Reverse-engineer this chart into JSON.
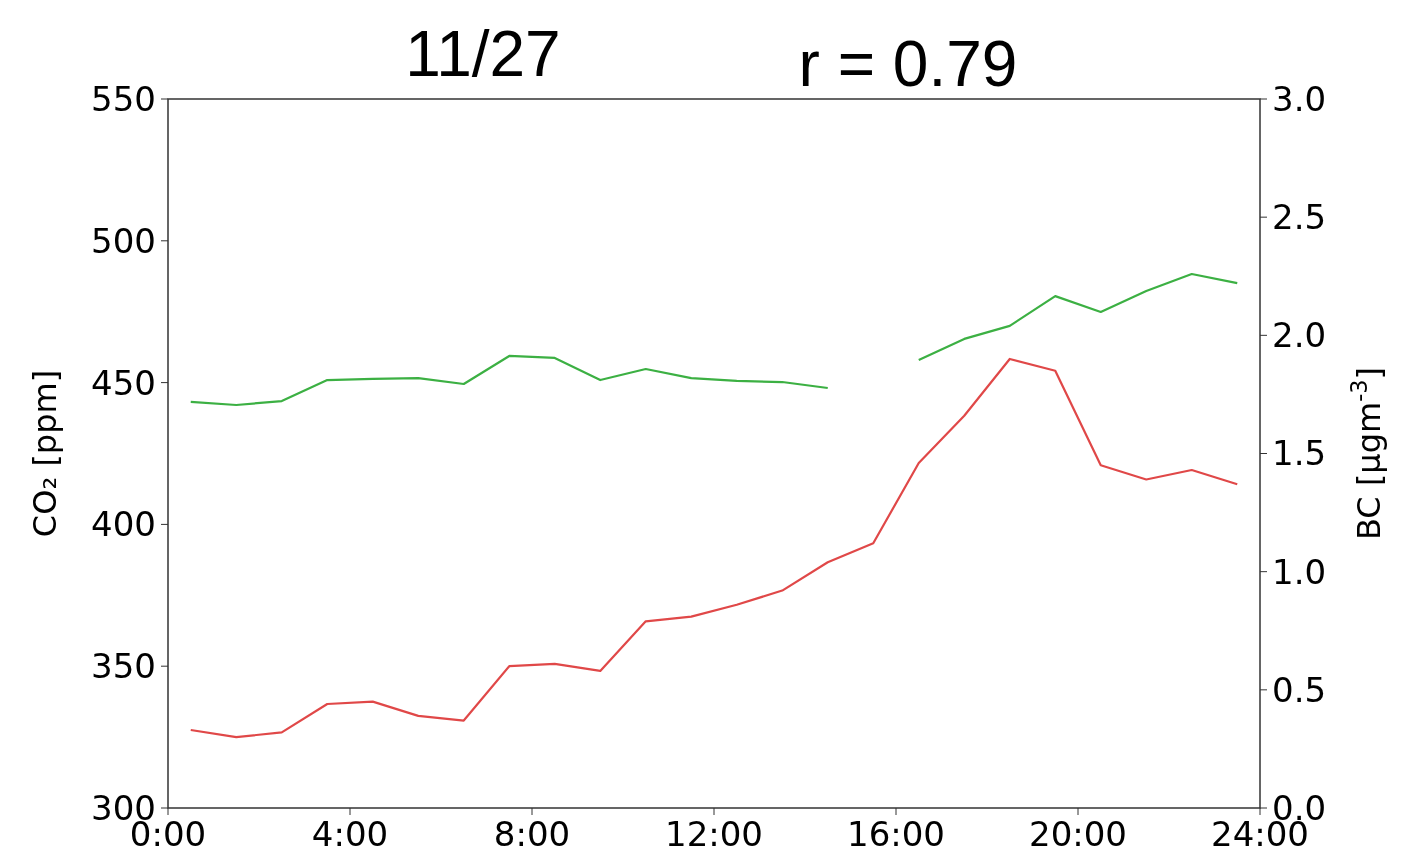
{
  "chart_data": {
    "type": "line",
    "title": "11/27",
    "annotations": [
      "r = 0.79"
    ],
    "xlabel": null,
    "ylabel": "CO₂ [ppm]",
    "y2label": "BC [µgm$^{-3}$]",
    "x": [
      0.5,
      1.5,
      2.5,
      3.5,
      4.5,
      5.5,
      6.5,
      7.5,
      8.5,
      9.5,
      10.5,
      11.5,
      12.5,
      13.5,
      14.5,
      15.5,
      16.5,
      17.5,
      18.5,
      19.5,
      20.5,
      21.5,
      22.5,
      23.5
    ],
    "xlim": [
      0,
      24
    ],
    "xticks": [
      {
        "value": 0,
        "label": "0:00"
      },
      {
        "value": 4,
        "label": "4:00"
      },
      {
        "value": 8,
        "label": "8:00"
      },
      {
        "value": 12,
        "label": "12:00"
      },
      {
        "value": 16,
        "label": "16:00"
      },
      {
        "value": 20,
        "label": "20:00"
      },
      {
        "value": 24,
        "label": "24:00"
      }
    ],
    "ylim": [
      300,
      550
    ],
    "yticks": [
      300,
      350,
      400,
      450,
      500,
      550
    ],
    "y2lim": [
      0,
      3
    ],
    "y2ticks": [
      {
        "value": 0,
        "label": "0.0"
      },
      {
        "value": 0.5,
        "label": "0.5"
      },
      {
        "value": 1,
        "label": "1.0"
      },
      {
        "value": 1.5,
        "label": "1.5"
      },
      {
        "value": 2,
        "label": "2.0"
      },
      {
        "value": 2.5,
        "label": "2.5"
      },
      {
        "value": 3,
        "label": "3.0"
      }
    ],
    "grid": false,
    "series": [
      {
        "color": "#3cb043",
        "axis": "y",
        "values": [
          443.2,
          442.1,
          443.5,
          450.9,
          451.3,
          451.6,
          449.5,
          459.4,
          458.7,
          450.9,
          454.8,
          451.6,
          450.6,
          450.2,
          448.1,
          null,
          458.0,
          465.4,
          470.0,
          480.5,
          474.9,
          482.3,
          488.3,
          485.1
        ]
      },
      {
        "color": "#e04848",
        "axis": "y2",
        "values": [
          0.33,
          0.3,
          0.32,
          0.44,
          0.45,
          0.39,
          0.37,
          0.6,
          0.61,
          0.58,
          0.79,
          0.81,
          0.86,
          0.92,
          1.04,
          1.12,
          1.46,
          1.66,
          1.9,
          1.85,
          1.45,
          1.39,
          1.43,
          1.37
        ]
      }
    ]
  }
}
